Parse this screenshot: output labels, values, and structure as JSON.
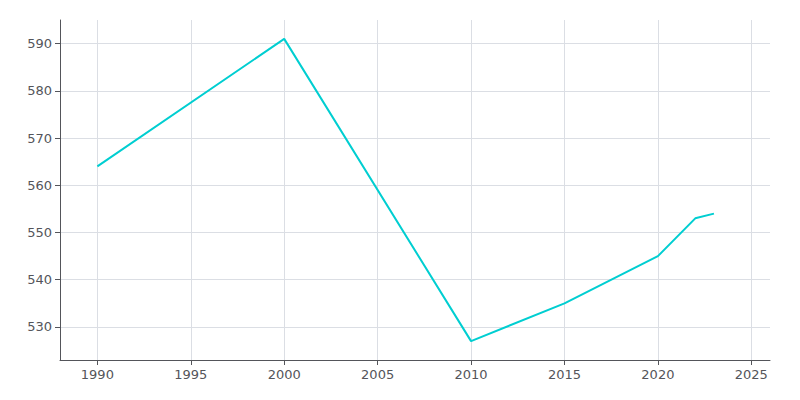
{
  "chart_data": {
    "type": "line",
    "x": [
      1990,
      2000,
      2010,
      2015,
      2020,
      2022,
      2023
    ],
    "values": [
      564,
      591,
      527,
      535,
      545,
      553,
      554
    ],
    "color": "#00CED1",
    "xlim": [
      1988,
      2026
    ],
    "ylim": [
      523,
      595
    ],
    "xticks": [
      1990,
      1995,
      2000,
      2005,
      2010,
      2015,
      2020,
      2025
    ],
    "yticks": [
      530,
      540,
      550,
      560,
      570,
      580,
      590
    ],
    "grid": true
  }
}
